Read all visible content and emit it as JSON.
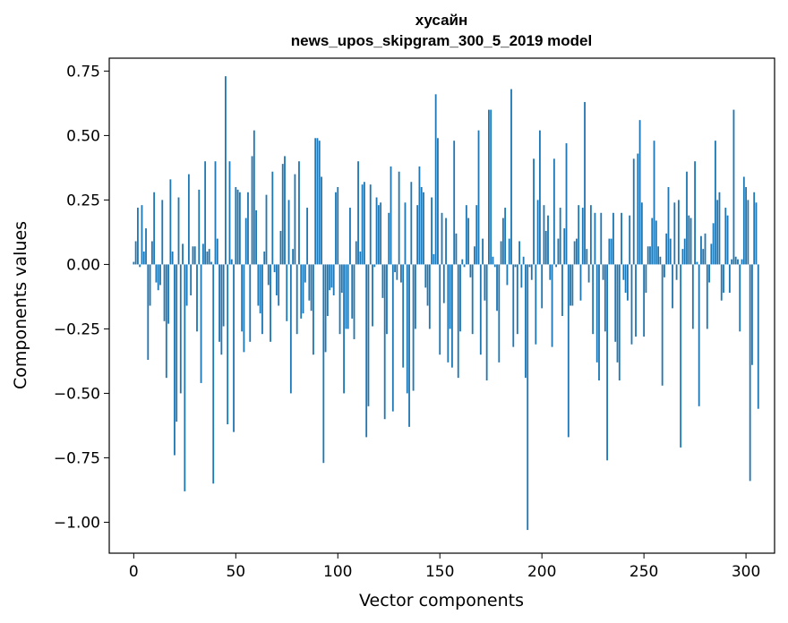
{
  "chart_data": {
    "type": "bar",
    "title": "хусайн",
    "subtitle": "news_upos_skipgram_300_5_2019 model",
    "xlabel": "Vector components",
    "ylabel": "Components values",
    "xlim": [
      -12,
      314
    ],
    "ylim": [
      -1.12,
      0.8
    ],
    "x_ticks": [
      0,
      50,
      100,
      150,
      200,
      250,
      300
    ],
    "y_ticks": [
      -1.0,
      -0.75,
      -0.5,
      -0.25,
      0.0,
      0.25,
      0.5,
      0.75
    ],
    "x_tick_labels": [
      "0",
      "50",
      "100",
      "150",
      "200",
      "250",
      "300"
    ],
    "y_tick_labels": [
      "−1.00",
      "−0.75",
      "−0.50",
      "−0.25",
      "0.00",
      "0.25",
      "0.50",
      "0.75"
    ],
    "bar_color": "#1f77b4",
    "series": [
      {
        "name": "хусайн",
        "values": [
          0.01,
          0.09,
          0.22,
          -0.01,
          0.23,
          0.05,
          0.14,
          -0.37,
          -0.16,
          0.09,
          0.28,
          -0.07,
          -0.1,
          -0.08,
          0.25,
          -0.22,
          -0.44,
          -0.23,
          0.33,
          0.05,
          -0.74,
          -0.61,
          0.26,
          -0.5,
          0.08,
          -0.88,
          -0.16,
          0.35,
          -0.12,
          0.07,
          0.07,
          -0.26,
          0.29,
          -0.46,
          0.08,
          0.4,
          0.05,
          0.06,
          0.01,
          -0.85,
          0.4,
          0.1,
          -0.3,
          -0.35,
          -0.24,
          0.73,
          -0.62,
          0.4,
          0.02,
          -0.65,
          0.3,
          0.29,
          0.28,
          -0.26,
          -0.34,
          0.18,
          0.28,
          -0.3,
          0.42,
          0.52,
          0.21,
          -0.16,
          -0.19,
          -0.27,
          0.05,
          0.27,
          -0.08,
          -0.3,
          0.36,
          -0.03,
          -0.12,
          -0.16,
          0.13,
          0.39,
          0.42,
          -0.22,
          0.25,
          -0.5,
          0.06,
          0.35,
          -0.27,
          0.4,
          -0.21,
          -0.19,
          -0.07,
          0.22,
          -0.14,
          -0.18,
          -0.35,
          0.49,
          0.49,
          0.48,
          0.34,
          -0.77,
          -0.34,
          -0.2,
          -0.1,
          -0.09,
          -0.12,
          0.28,
          0.3,
          -0.27,
          -0.11,
          -0.5,
          -0.25,
          -0.25,
          0.22,
          -0.21,
          -0.29,
          0.09,
          0.4,
          0.05,
          0.31,
          0.32,
          -0.67,
          -0.55,
          0.31,
          -0.24,
          -0.01,
          0.26,
          0.23,
          0.24,
          -0.13,
          -0.6,
          -0.27,
          0.2,
          0.38,
          -0.57,
          -0.03,
          -0.06,
          0.36,
          -0.07,
          -0.4,
          0.24,
          -0.5,
          -0.63,
          0.32,
          -0.49,
          -0.25,
          0.23,
          0.38,
          0.3,
          0.28,
          -0.09,
          -0.16,
          -0.25,
          0.26,
          0.04,
          0.66,
          0.49,
          -0.35,
          0.2,
          -0.15,
          0.18,
          -0.38,
          -0.25,
          -0.4,
          0.48,
          0.12,
          -0.44,
          -0.26,
          0.02,
          -0.01,
          0.23,
          0.18,
          -0.05,
          -0.27,
          0.07,
          0.23,
          0.52,
          -0.35,
          0.1,
          -0.14,
          -0.45,
          0.6,
          0.6,
          0.03,
          -0.01,
          -0.18,
          -0.38,
          0.09,
          0.18,
          0.22,
          -0.08,
          0.1,
          0.68,
          -0.32,
          -0.01,
          -0.27,
          0.09,
          -0.09,
          0.03,
          -0.44,
          -1.03,
          -0.01,
          -0.06,
          0.41,
          -0.31,
          0.25,
          0.52,
          -0.17,
          0.23,
          0.13,
          0.19,
          -0.06,
          -0.32,
          0.41,
          -0.01,
          0.1,
          0.22,
          -0.2,
          0.14,
          0.47,
          -0.67,
          -0.16,
          -0.16,
          0.09,
          0.1,
          0.23,
          -0.14,
          0.22,
          0.63,
          0.06,
          -0.07,
          0.23,
          -0.27,
          0.2,
          -0.38,
          -0.45,
          0.2,
          -0.06,
          -0.26,
          -0.76,
          0.1,
          0.1,
          0.2,
          -0.3,
          -0.38,
          -0.45,
          0.2,
          -0.06,
          -0.11,
          -0.14,
          0.19,
          -0.31,
          0.41,
          -0.28,
          0.43,
          0.56,
          0.24,
          -0.28,
          -0.11,
          0.07,
          0.07,
          0.18,
          0.48,
          0.17,
          0.07,
          0.03,
          -0.47,
          -0.05,
          0.12,
          0.3,
          0.1,
          -0.17,
          0.24,
          -0.06,
          0.25,
          -0.71,
          0.06,
          0.1,
          0.36,
          0.19,
          0.18,
          -0.25,
          0.4,
          0.01,
          -0.55,
          0.11,
          0.06,
          0.12,
          -0.25,
          -0.07,
          0.08,
          0.16,
          0.48,
          0.25,
          0.28,
          -0.14,
          -0.11,
          0.22,
          0.19,
          -0.11,
          0.02,
          0.6,
          0.03,
          0.02,
          -0.26,
          0.02,
          0.34,
          0.3,
          0.25,
          -0.84,
          -0.39,
          0.28,
          0.24,
          -0.56
        ]
      }
    ]
  }
}
